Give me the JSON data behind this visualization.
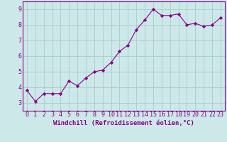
{
  "x": [
    0,
    1,
    2,
    3,
    4,
    5,
    6,
    7,
    8,
    9,
    10,
    11,
    12,
    13,
    14,
    15,
    16,
    17,
    18,
    19,
    20,
    21,
    22,
    23
  ],
  "y": [
    3.8,
    3.1,
    3.6,
    3.6,
    3.6,
    4.4,
    4.1,
    4.6,
    5.0,
    5.1,
    5.6,
    6.3,
    6.7,
    7.7,
    8.3,
    9.0,
    8.6,
    8.6,
    8.7,
    8.0,
    8.1,
    7.9,
    8.0,
    8.45
  ],
  "line_color": "#880088",
  "marker": "D",
  "marker_size": 2.2,
  "bg_color": "#cce8e8",
  "grid_color": "#aacccc",
  "xlim": [
    -0.5,
    23.5
  ],
  "ylim": [
    2.5,
    9.5
  ],
  "yticks": [
    3,
    4,
    5,
    6,
    7,
    8,
    9
  ],
  "xticks": [
    0,
    1,
    2,
    3,
    4,
    5,
    6,
    7,
    8,
    9,
    10,
    11,
    12,
    13,
    14,
    15,
    16,
    17,
    18,
    19,
    20,
    21,
    22,
    23
  ],
  "xlabel": "Windchill (Refroidissement éolien,°C)",
  "spine_color": "#880088",
  "tick_color": "#880088",
  "label_color": "#880088",
  "xlabel_fontsize": 6.5,
  "tick_fontsize": 6.0,
  "linewidth": 0.8
}
